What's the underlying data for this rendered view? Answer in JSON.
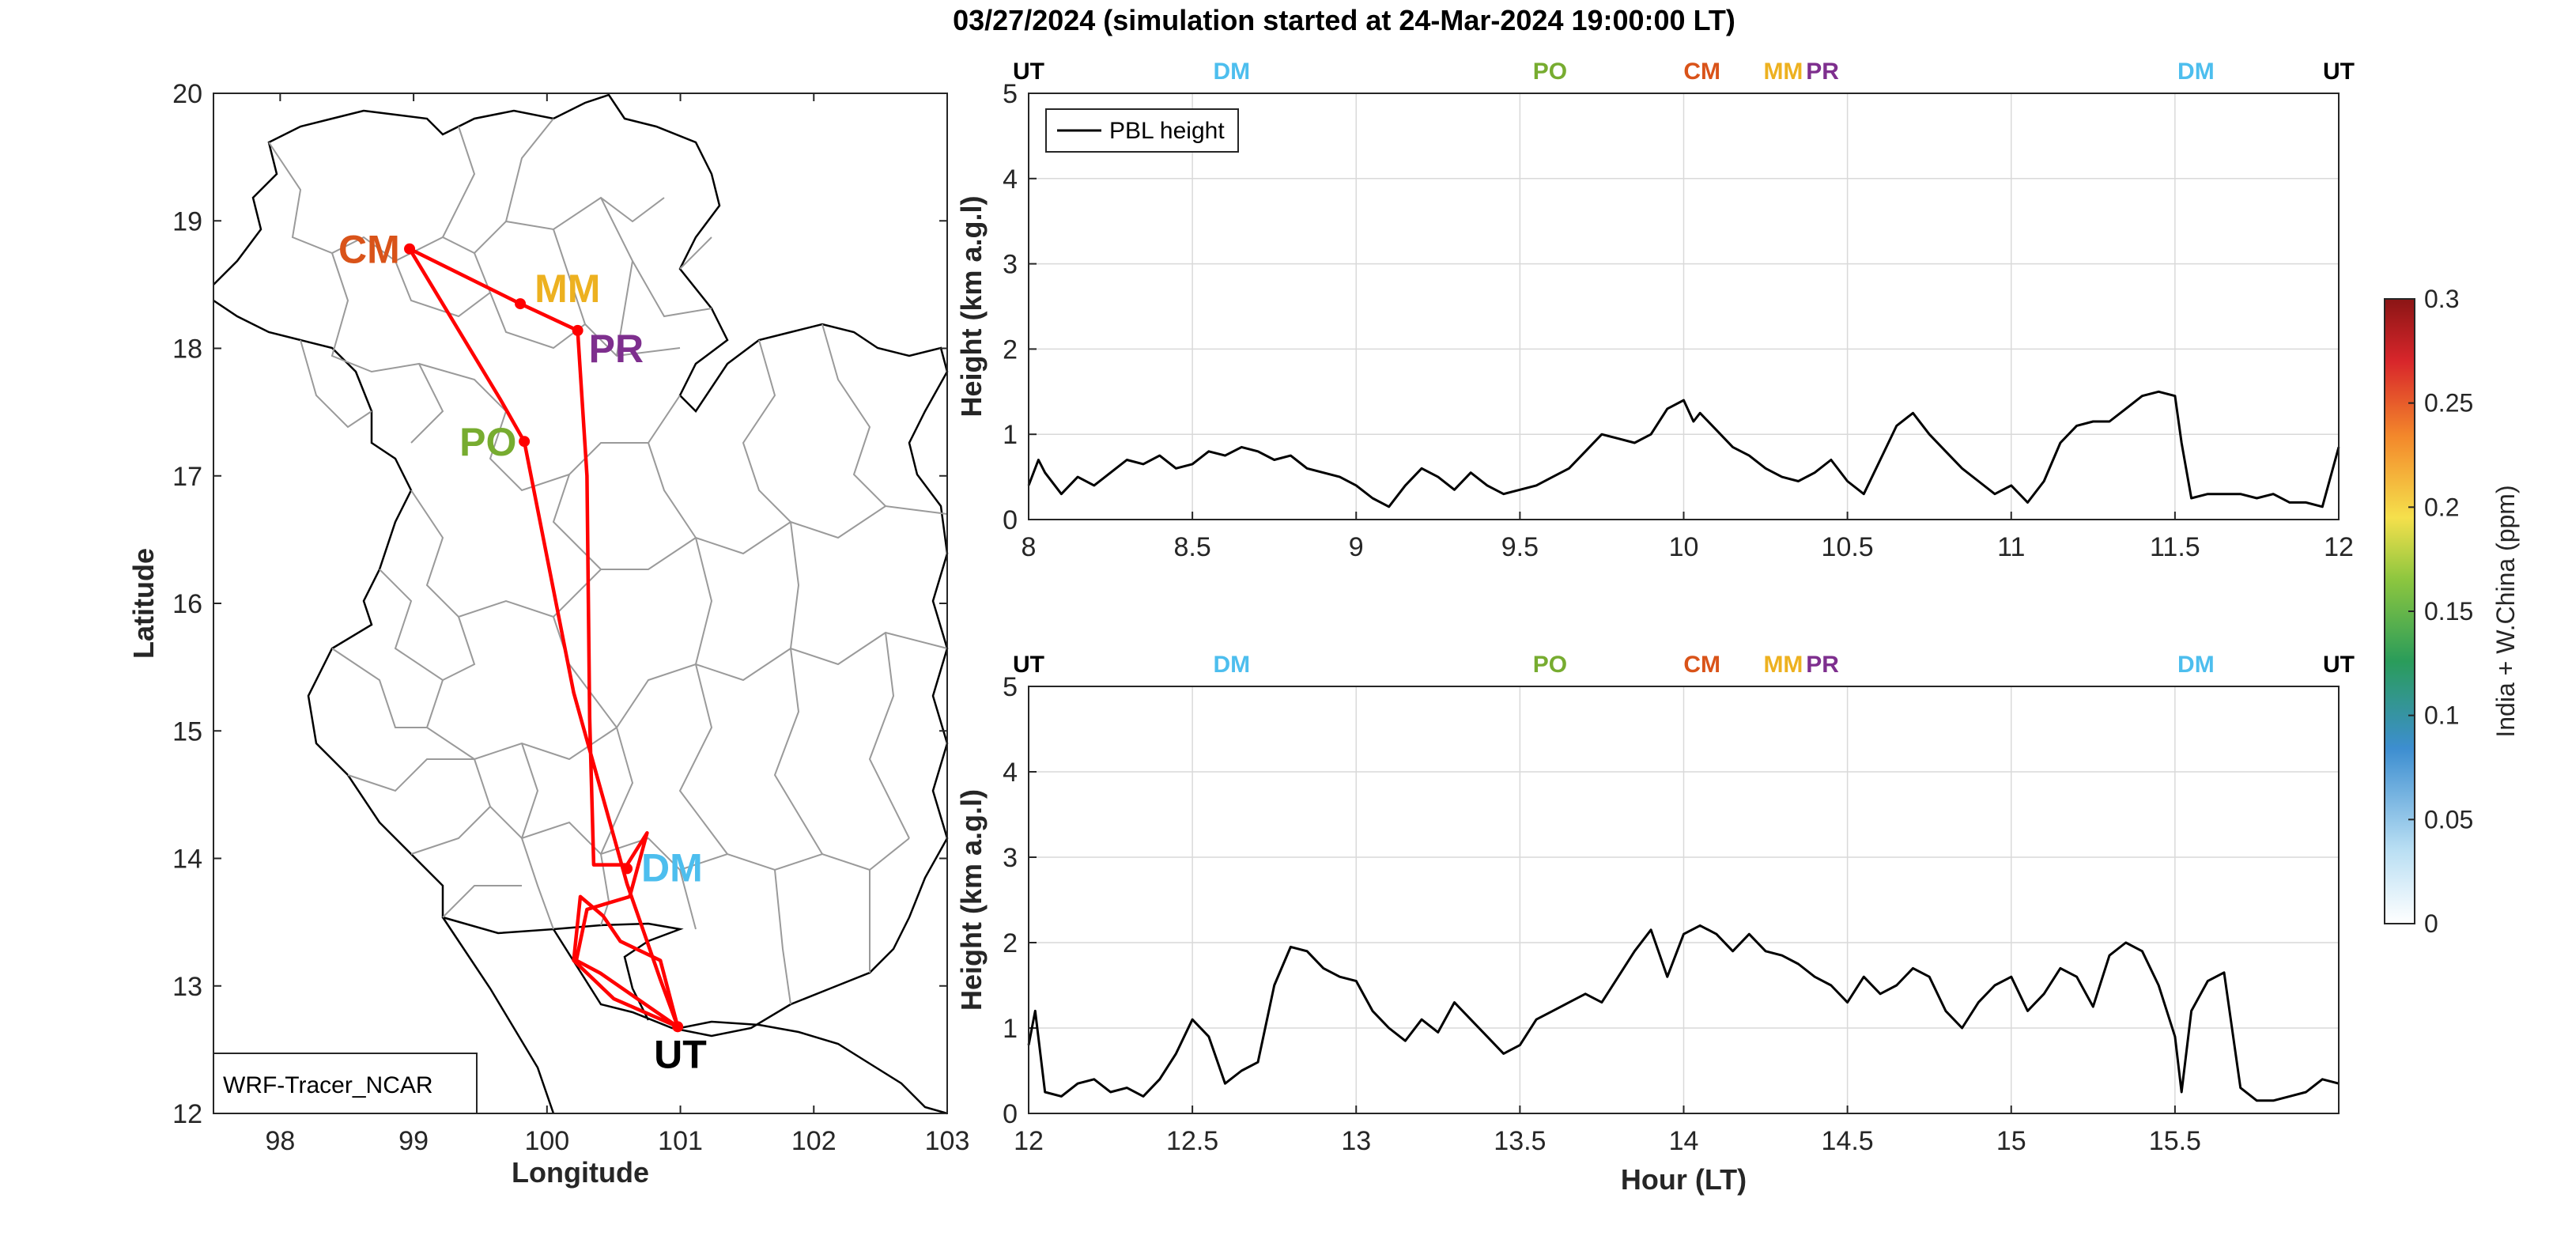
{
  "title": "03/27/2024 (simulation started at 24-Mar-2024 19:00:00 LT)",
  "map": {
    "xlabel": "Longitude",
    "ylabel": "Latitude",
    "xticks": [
      "98",
      "99",
      "100",
      "101",
      "102",
      "103"
    ],
    "yticks": [
      "12",
      "13",
      "14",
      "15",
      "16",
      "17",
      "18",
      "19",
      "20"
    ],
    "xlim": [
      97.5,
      103
    ],
    "ylim": [
      12,
      20
    ],
    "model_label": "WRF-Tracer_NCAR",
    "sites": [
      {
        "name": "CM",
        "lon": 98.97,
        "lat": 18.78,
        "color": "#D95319"
      },
      {
        "name": "MM",
        "lon": 99.8,
        "lat": 18.35,
        "color": "#EDB120"
      },
      {
        "name": "PR",
        "lon": 100.23,
        "lat": 18.14,
        "color": "#7E2F8E"
      },
      {
        "name": "PO",
        "lon": 99.83,
        "lat": 17.27,
        "color": "#77AC30"
      },
      {
        "name": "DM",
        "lon": 100.6,
        "lat": 13.92,
        "color": "#4DBEEE"
      },
      {
        "name": "UT",
        "lon": 100.98,
        "lat": 12.68,
        "color": "#000000"
      }
    ],
    "flight_track": [
      [
        98.97,
        18.78
      ],
      [
        99.8,
        18.35
      ],
      [
        100.23,
        18.14
      ],
      [
        100.3,
        17.0
      ],
      [
        100.32,
        15.1
      ],
      [
        100.35,
        13.95
      ],
      [
        100.6,
        13.95
      ],
      [
        100.75,
        14.2
      ],
      [
        100.62,
        13.7
      ],
      [
        100.3,
        13.6
      ],
      [
        100.22,
        13.2
      ],
      [
        100.4,
        13.1
      ],
      [
        100.98,
        12.68
      ],
      [
        100.5,
        12.9
      ],
      [
        100.2,
        13.2
      ],
      [
        100.25,
        13.7
      ],
      [
        100.42,
        13.55
      ],
      [
        100.55,
        13.35
      ],
      [
        100.85,
        13.2
      ],
      [
        100.98,
        12.68
      ],
      [
        100.85,
        13.05
      ],
      [
        100.6,
        13.8
      ],
      [
        100.2,
        15.3
      ],
      [
        99.83,
        17.27
      ],
      [
        99.65,
        17.6
      ],
      [
        98.97,
        18.78
      ]
    ],
    "track_color": "#ff0000"
  },
  "panels": [
    {
      "xticks": [
        "8",
        "8.5",
        "9",
        "9.5",
        "10",
        "10.5",
        "11",
        "11.5",
        "12"
      ],
      "xlim": [
        8,
        12
      ]
    },
    {
      "xticks": [
        "12",
        "12.5",
        "13",
        "13.5",
        "14",
        "14.5",
        "15",
        "15.5"
      ],
      "xlim": [
        12,
        16
      ]
    }
  ],
  "panel_ylabel": "Height (km a.g.l)",
  "panel_yticks": [
    "0",
    "1",
    "2",
    "3",
    "4",
    "5"
  ],
  "panel_ylim": [
    0,
    5
  ],
  "xlabel": "Hour (LT)",
  "legend_label": "PBL height",
  "site_markers": [
    {
      "name": "UT",
      "x": 0.0,
      "color": "#000000"
    },
    {
      "name": "DM",
      "x": 0.155,
      "color": "#4DBEEE"
    },
    {
      "name": "PO",
      "x": 0.398,
      "color": "#77AC30"
    },
    {
      "name": "CM",
      "x": 0.514,
      "color": "#D95319"
    },
    {
      "name": "MM",
      "x": 0.576,
      "color": "#EDB120"
    },
    {
      "name": "PR",
      "x": 0.606,
      "color": "#7E2F8E"
    },
    {
      "name": "DM",
      "x": 0.891,
      "color": "#4DBEEE"
    },
    {
      "name": "UT",
      "x": 1.0,
      "color": "#000000"
    }
  ],
  "colorbar": {
    "label": "India + W.China (ppm)",
    "ticks": [
      "0",
      "0.05",
      "0.1",
      "0.15",
      "0.2",
      "0.25",
      "0.3"
    ],
    "range": [
      0,
      0.3
    ]
  },
  "chart_data": [
    {
      "type": "line",
      "title": "03/27/2024 (simulation started at 24-Mar-2024 19:00:00 LT)",
      "xlabel": "",
      "ylabel": "Height (km a.g.l)",
      "xlim": [
        8,
        12
      ],
      "ylim": [
        0,
        5
      ],
      "legend": "top-left",
      "grid": true,
      "series": [
        {
          "name": "PBL height",
          "x": [
            8.0,
            8.03,
            8.05,
            8.1,
            8.15,
            8.2,
            8.25,
            8.3,
            8.35,
            8.4,
            8.45,
            8.5,
            8.55,
            8.6,
            8.65,
            8.7,
            8.75,
            8.8,
            8.85,
            8.9,
            8.95,
            9.0,
            9.05,
            9.1,
            9.15,
            9.2,
            9.25,
            9.3,
            9.35,
            9.4,
            9.45,
            9.5,
            9.55,
            9.6,
            9.65,
            9.7,
            9.75,
            9.8,
            9.85,
            9.9,
            9.95,
            10.0,
            10.03,
            10.05,
            10.1,
            10.15,
            10.2,
            10.25,
            10.3,
            10.35,
            10.4,
            10.45,
            10.5,
            10.55,
            10.6,
            10.65,
            10.7,
            10.75,
            10.8,
            10.85,
            10.9,
            10.95,
            11.0,
            11.05,
            11.1,
            11.15,
            11.2,
            11.25,
            11.3,
            11.35,
            11.4,
            11.45,
            11.5,
            11.52,
            11.55,
            11.6,
            11.65,
            11.7,
            11.75,
            11.8,
            11.85,
            11.9,
            11.95,
            12.0
          ],
          "y": [
            0.4,
            0.7,
            0.55,
            0.3,
            0.5,
            0.4,
            0.55,
            0.7,
            0.65,
            0.75,
            0.6,
            0.65,
            0.8,
            0.75,
            0.85,
            0.8,
            0.7,
            0.75,
            0.6,
            0.55,
            0.5,
            0.4,
            0.25,
            0.15,
            0.4,
            0.6,
            0.5,
            0.35,
            0.55,
            0.4,
            0.3,
            0.35,
            0.4,
            0.5,
            0.6,
            0.8,
            1.0,
            0.95,
            0.9,
            1.0,
            1.3,
            1.4,
            1.15,
            1.25,
            1.05,
            0.85,
            0.75,
            0.6,
            0.5,
            0.45,
            0.55,
            0.7,
            0.45,
            0.3,
            0.7,
            1.1,
            1.25,
            1.0,
            0.8,
            0.6,
            0.45,
            0.3,
            0.4,
            0.2,
            0.45,
            0.9,
            1.1,
            1.15,
            1.15,
            1.3,
            1.45,
            1.5,
            1.45,
            0.9,
            0.25,
            0.3,
            0.3,
            0.3,
            0.25,
            0.3,
            0.2,
            0.2,
            0.15,
            0.85
          ]
        }
      ]
    },
    {
      "type": "line",
      "xlabel": "Hour (LT)",
      "ylabel": "Height (km a.g.l)",
      "xlim": [
        12,
        16
      ],
      "ylim": [
        0,
        5
      ],
      "grid": true,
      "series": [
        {
          "name": "PBL height",
          "x": [
            12.0,
            12.02,
            12.05,
            12.1,
            12.15,
            12.2,
            12.25,
            12.3,
            12.35,
            12.4,
            12.45,
            12.5,
            12.55,
            12.6,
            12.65,
            12.7,
            12.75,
            12.8,
            12.85,
            12.9,
            12.95,
            13.0,
            13.05,
            13.1,
            13.15,
            13.2,
            13.25,
            13.3,
            13.35,
            13.4,
            13.45,
            13.5,
            13.55,
            13.6,
            13.65,
            13.7,
            13.75,
            13.8,
            13.85,
            13.9,
            13.95,
            14.0,
            14.05,
            14.1,
            14.15,
            14.2,
            14.25,
            14.3,
            14.35,
            14.4,
            14.45,
            14.5,
            14.55,
            14.6,
            14.65,
            14.7,
            14.75,
            14.8,
            14.85,
            14.9,
            14.95,
            15.0,
            15.05,
            15.1,
            15.15,
            15.2,
            15.25,
            15.3,
            15.35,
            15.4,
            15.45,
            15.5,
            15.52,
            15.55,
            15.6,
            15.65,
            15.7,
            15.75,
            15.8,
            15.85,
            15.9,
            15.95,
            16.0
          ],
          "y": [
            0.8,
            1.2,
            0.25,
            0.2,
            0.35,
            0.4,
            0.25,
            0.3,
            0.2,
            0.4,
            0.7,
            1.1,
            0.9,
            0.35,
            0.5,
            0.6,
            1.5,
            1.95,
            1.9,
            1.7,
            1.6,
            1.55,
            1.2,
            1.0,
            0.85,
            1.1,
            0.95,
            1.3,
            1.1,
            0.9,
            0.7,
            0.8,
            1.1,
            1.2,
            1.3,
            1.4,
            1.3,
            1.6,
            1.9,
            2.15,
            1.6,
            2.1,
            2.2,
            2.1,
            1.9,
            2.1,
            1.9,
            1.85,
            1.75,
            1.6,
            1.5,
            1.3,
            1.6,
            1.4,
            1.5,
            1.7,
            1.6,
            1.2,
            1.0,
            1.3,
            1.5,
            1.6,
            1.2,
            1.4,
            1.7,
            1.6,
            1.25,
            1.85,
            2.0,
            1.9,
            1.5,
            0.9,
            0.25,
            1.2,
            1.55,
            1.65,
            0.3,
            0.15,
            0.15,
            0.2,
            0.25,
            0.4,
            0.35
          ]
        }
      ]
    }
  ]
}
